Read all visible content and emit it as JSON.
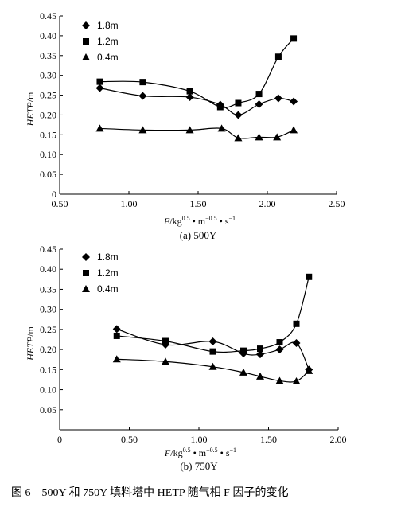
{
  "caption": "图 6　500Y 和 750Y 填料塔中 HETP 随气相 F 因子的变化",
  "chart_data": [
    {
      "type": "line",
      "subtitle": "(a) 500Y",
      "ylabel": "HETP/m",
      "xlabel_parts": [
        "F",
        "/kg",
        "0.5",
        " • m",
        "−0.5",
        " • s",
        "−1"
      ],
      "xlim": [
        0.5,
        2.5
      ],
      "ylim": [
        0,
        0.45
      ],
      "xticks": [
        "0.50",
        "1.00",
        "1.50",
        "2.00",
        "2.50"
      ],
      "yticks": [
        "0",
        "0.05",
        "0.10",
        "0.15",
        "0.20",
        "0.25",
        "0.30",
        "0.35",
        "0.40",
        "0.45"
      ],
      "legend_position": "top-left",
      "series": [
        {
          "name": "1.8m",
          "marker": "diamond",
          "x": [
            0.79,
            1.1,
            1.44,
            1.66,
            1.79,
            1.94,
            2.08,
            2.19
          ],
          "y": [
            0.268,
            0.248,
            0.245,
            0.226,
            0.2,
            0.227,
            0.242,
            0.234
          ]
        },
        {
          "name": "1.2m",
          "marker": "square",
          "x": [
            0.79,
            1.1,
            1.44,
            1.66,
            1.79,
            1.94,
            2.08,
            2.19
          ],
          "y": [
            0.284,
            0.283,
            0.26,
            0.22,
            0.23,
            0.253,
            0.347,
            0.393
          ]
        },
        {
          "name": "0.4m",
          "marker": "triangle",
          "x": [
            0.79,
            1.1,
            1.44,
            1.67,
            1.79,
            1.94,
            2.07,
            2.19
          ],
          "y": [
            0.166,
            0.162,
            0.162,
            0.166,
            0.142,
            0.144,
            0.144,
            0.162
          ]
        }
      ]
    },
    {
      "type": "line",
      "subtitle": "(b) 750Y",
      "ylabel": "HETP/m",
      "xlabel_parts": [
        "F",
        "/kg",
        "0.5",
        " • m",
        "−0.5",
        " • s",
        "−1"
      ],
      "xlim": [
        0,
        2.0
      ],
      "ylim": [
        0,
        0.45
      ],
      "xticks": [
        "0",
        "0.50",
        "1.00",
        "1.50",
        "2.00"
      ],
      "yticks": [
        "",
        "0.05",
        "0.10",
        "0.15",
        "0.20",
        "0.25",
        "0.30",
        "0.35",
        "0.40",
        "0.45"
      ],
      "legend_position": "top-left",
      "series": [
        {
          "name": "1.8m",
          "marker": "diamond",
          "x": [
            0.41,
            0.76,
            1.1,
            1.32,
            1.44,
            1.58,
            1.7,
            1.79
          ],
          "y": [
            0.251,
            0.212,
            0.22,
            0.19,
            0.188,
            0.2,
            0.216,
            0.15
          ]
        },
        {
          "name": "1.2m",
          "marker": "square",
          "x": [
            0.41,
            0.76,
            1.1,
            1.32,
            1.44,
            1.58,
            1.7,
            1.79
          ],
          "y": [
            0.234,
            0.221,
            0.195,
            0.197,
            0.202,
            0.218,
            0.264,
            0.381
          ]
        },
        {
          "name": "0.4m",
          "marker": "triangle",
          "x": [
            0.41,
            0.76,
            1.1,
            1.32,
            1.44,
            1.58,
            1.7,
            1.79
          ],
          "y": [
            0.176,
            0.17,
            0.157,
            0.143,
            0.133,
            0.122,
            0.121,
            0.147
          ]
        }
      ]
    }
  ]
}
